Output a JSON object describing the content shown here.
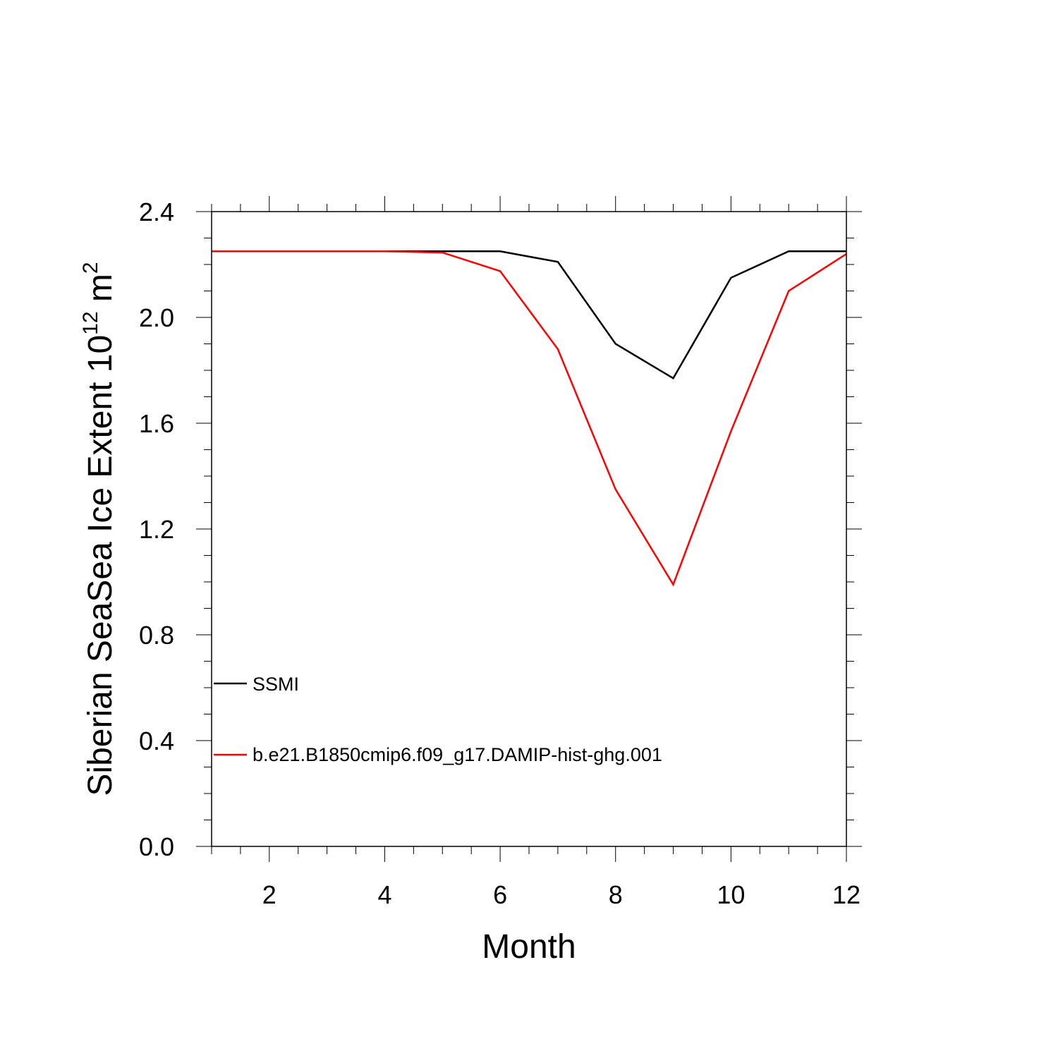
{
  "chart_data": {
    "type": "line",
    "xlabel": "Month",
    "ylabel": {
      "text": "Siberian SeaSea Ice Extent 10",
      "exponent": "12",
      "unit": " m",
      "unit_exponent": "2"
    },
    "xlim": [
      1,
      12
    ],
    "ylim": [
      0,
      2.4
    ],
    "xticks": [
      2,
      4,
      6,
      8,
      10,
      12
    ],
    "xtick_labels": [
      "2",
      "4",
      "6",
      "8",
      "10",
      "12"
    ],
    "yticks": [
      0,
      0.4,
      0.8,
      1.2,
      1.6,
      2.0,
      2.4
    ],
    "ytick_labels": [
      "0.0",
      "0.4",
      "0.8",
      "1.2",
      "1.6",
      "2.0",
      "2.4"
    ],
    "grid": false,
    "legend_position": "lower-left",
    "x": [
      1,
      2,
      3,
      4,
      5,
      6,
      7,
      8,
      9,
      10,
      11,
      12
    ],
    "series": [
      {
        "name": "SSMI",
        "color": "#000000",
        "values": [
          2.25,
          2.25,
          2.25,
          2.25,
          2.25,
          2.25,
          2.21,
          1.9,
          1.77,
          2.15,
          2.25,
          2.25
        ]
      },
      {
        "name": "b.e21.B1850cmip6.f09_g17.DAMIP-hist-ghg.001",
        "color": "#ff0000",
        "values": [
          2.25,
          2.25,
          2.25,
          2.25,
          2.245,
          2.175,
          1.88,
          1.35,
          0.99,
          1.57,
          2.1,
          2.24
        ]
      }
    ]
  }
}
